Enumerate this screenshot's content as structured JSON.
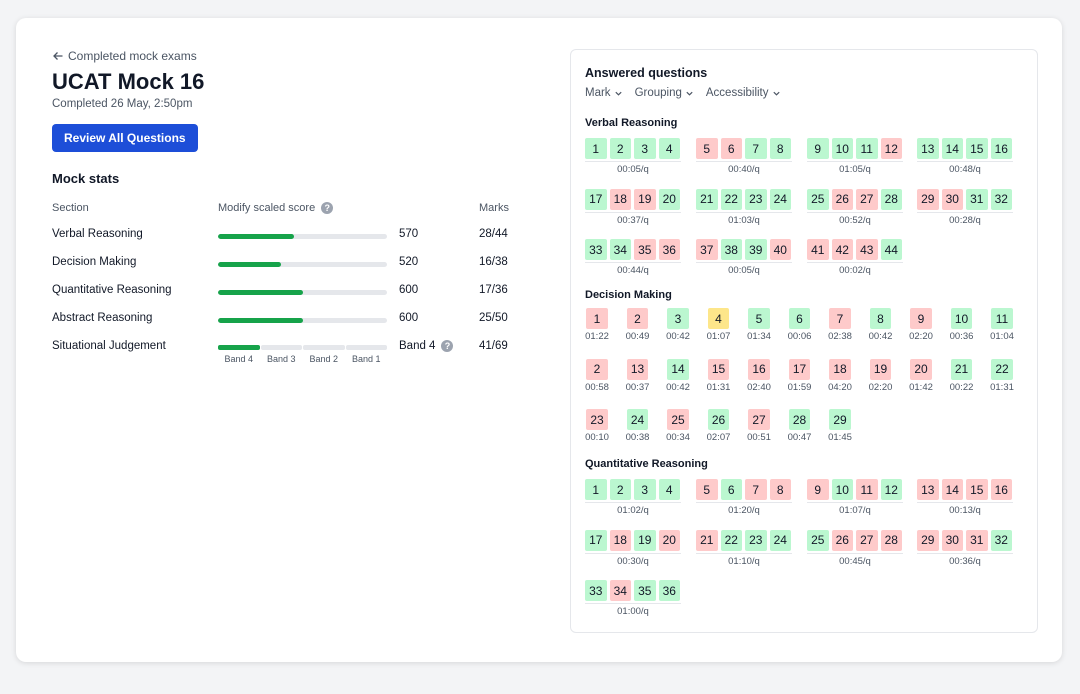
{
  "header": {
    "back_label": "Completed mock exams",
    "title": "UCAT Mock 16",
    "completed": "Completed 26 May, 2:50pm",
    "review_button": "Review All Questions"
  },
  "stats": {
    "title": "Mock stats",
    "col_section": "Section",
    "col_score": "Modify scaled score",
    "col_marks": "Marks",
    "rows": [
      {
        "name": "Verbal Reasoning",
        "score": "570",
        "marks": "28/44",
        "fill": 0.45
      },
      {
        "name": "Decision Making",
        "score": "520",
        "marks": "16/38",
        "fill": 0.37
      },
      {
        "name": "Quantitative Reasoning",
        "score": "600",
        "marks": "17/36",
        "fill": 0.5
      },
      {
        "name": "Abstract Reasoning",
        "score": "600",
        "marks": "25/50",
        "fill": 0.5
      }
    ],
    "sj": {
      "name": "Situational Judgement",
      "band": "Band 4",
      "marks": "41/69",
      "bands": [
        "Band 4",
        "Band 3",
        "Band 2",
        "Band 1"
      ],
      "active_band_index": 0
    }
  },
  "answered": {
    "title": "Answered questions",
    "filters": [
      "Mark",
      "Grouping",
      "Accessibility"
    ],
    "verbal": {
      "label": "Verbal Reasoning",
      "groups": [
        {
          "tiles": [
            [
              "1",
              "g"
            ],
            [
              "2",
              "g"
            ],
            [
              "3",
              "g"
            ],
            [
              "4",
              "g"
            ]
          ],
          "time": "00:05/q"
        },
        {
          "tiles": [
            [
              "5",
              "r"
            ],
            [
              "6",
              "r"
            ],
            [
              "7",
              "g"
            ],
            [
              "8",
              "g"
            ]
          ],
          "time": "00:40/q"
        },
        {
          "tiles": [
            [
              "9",
              "g"
            ],
            [
              "10",
              "g"
            ],
            [
              "11",
              "g"
            ],
            [
              "12",
              "r"
            ]
          ],
          "time": "01:05/q"
        },
        {
          "tiles": [
            [
              "13",
              "g"
            ],
            [
              "14",
              "g"
            ],
            [
              "15",
              "g"
            ],
            [
              "16",
              "g"
            ]
          ],
          "time": "00:48/q"
        },
        {
          "tiles": [
            [
              "17",
              "g"
            ],
            [
              "18",
              "r"
            ],
            [
              "19",
              "r"
            ],
            [
              "20",
              "g"
            ]
          ],
          "time": "00:37/q"
        },
        {
          "tiles": [
            [
              "21",
              "g"
            ],
            [
              "22",
              "g"
            ],
            [
              "23",
              "g"
            ],
            [
              "24",
              "g"
            ]
          ],
          "time": "01:03/q"
        },
        {
          "tiles": [
            [
              "25",
              "g"
            ],
            [
              "26",
              "r"
            ],
            [
              "27",
              "r"
            ],
            [
              "28",
              "g"
            ]
          ],
          "time": "00:52/q"
        },
        {
          "tiles": [
            [
              "29",
              "r"
            ],
            [
              "30",
              "r"
            ],
            [
              "31",
              "g"
            ],
            [
              "32",
              "g"
            ]
          ],
          "time": "00:28/q"
        },
        {
          "tiles": [
            [
              "33",
              "g"
            ],
            [
              "34",
              "g"
            ],
            [
              "35",
              "r"
            ],
            [
              "36",
              "r"
            ]
          ],
          "time": "00:44/q"
        },
        {
          "tiles": [
            [
              "37",
              "r"
            ],
            [
              "38",
              "g"
            ],
            [
              "39",
              "g"
            ],
            [
              "40",
              "r"
            ]
          ],
          "time": "00:05/q"
        },
        {
          "tiles": [
            [
              "41",
              "r"
            ],
            [
              "42",
              "r"
            ],
            [
              "43",
              "r"
            ],
            [
              "44",
              "g"
            ]
          ],
          "time": "00:02/q"
        }
      ]
    },
    "decision": {
      "label": "Decision Making",
      "items": [
        [
          "1",
          "r",
          "01:22"
        ],
        [
          "2",
          "r",
          "00:49"
        ],
        [
          "3",
          "g",
          "00:42"
        ],
        [
          "4",
          "y",
          "01:07"
        ],
        [
          "5",
          "g",
          "01:34"
        ],
        [
          "6",
          "g",
          "00:06"
        ],
        [
          "7",
          "r",
          "02:38"
        ],
        [
          "8",
          "g",
          "00:42"
        ],
        [
          "9",
          "r",
          "02:20"
        ],
        [
          "10",
          "g",
          "00:36"
        ],
        [
          "11",
          "g",
          "01:04"
        ],
        [
          "2",
          "r",
          "00:58"
        ],
        [
          "13",
          "r",
          "00:37"
        ],
        [
          "14",
          "g",
          "00:42"
        ],
        [
          "15",
          "r",
          "01:31"
        ],
        [
          "16",
          "r",
          "02:40"
        ],
        [
          "17",
          "r",
          "01:59"
        ],
        [
          "18",
          "r",
          "04:20"
        ],
        [
          "19",
          "r",
          "02:20"
        ],
        [
          "20",
          "r",
          "01:42"
        ],
        [
          "21",
          "g",
          "00:22"
        ],
        [
          "22",
          "g",
          "01:31"
        ],
        [
          "23",
          "r",
          "00:10"
        ],
        [
          "24",
          "g",
          "00:38"
        ],
        [
          "25",
          "r",
          "00:34"
        ],
        [
          "26",
          "g",
          "02:07"
        ],
        [
          "27",
          "r",
          "00:51"
        ],
        [
          "28",
          "g",
          "00:47"
        ],
        [
          "29",
          "g",
          "01:45"
        ]
      ]
    },
    "quant": {
      "label": "Quantitative Reasoning",
      "groups": [
        {
          "tiles": [
            [
              "1",
              "g"
            ],
            [
              "2",
              "g"
            ],
            [
              "3",
              "g"
            ],
            [
              "4",
              "g"
            ]
          ],
          "time": "01:02/q"
        },
        {
          "tiles": [
            [
              "5",
              "r"
            ],
            [
              "6",
              "g"
            ],
            [
              "7",
              "r"
            ],
            [
              "8",
              "r"
            ]
          ],
          "time": "01:20/q"
        },
        {
          "tiles": [
            [
              "9",
              "r"
            ],
            [
              "10",
              "g"
            ],
            [
              "11",
              "r"
            ],
            [
              "12",
              "g"
            ]
          ],
          "time": "01:07/q"
        },
        {
          "tiles": [
            [
              "13",
              "r"
            ],
            [
              "14",
              "r"
            ],
            [
              "15",
              "r"
            ],
            [
              "16",
              "r"
            ]
          ],
          "time": "00:13/q"
        },
        {
          "tiles": [
            [
              "17",
              "g"
            ],
            [
              "18",
              "r"
            ],
            [
              "19",
              "g"
            ],
            [
              "20",
              "r"
            ]
          ],
          "time": "00:30/q"
        },
        {
          "tiles": [
            [
              "21",
              "r"
            ],
            [
              "22",
              "g"
            ],
            [
              "23",
              "g"
            ],
            [
              "24",
              "g"
            ]
          ],
          "time": "01:10/q"
        },
        {
          "tiles": [
            [
              "25",
              "g"
            ],
            [
              "26",
              "r"
            ],
            [
              "27",
              "r"
            ],
            [
              "28",
              "r"
            ]
          ],
          "time": "00:45/q"
        },
        {
          "tiles": [
            [
              "29",
              "r"
            ],
            [
              "30",
              "r"
            ],
            [
              "31",
              "r"
            ],
            [
              "32",
              "g"
            ]
          ],
          "time": "00:36/q"
        },
        {
          "tiles": [
            [
              "33",
              "g"
            ],
            [
              "34",
              "r"
            ],
            [
              "35",
              "g"
            ],
            [
              "36",
              "g"
            ]
          ],
          "time": "01:00/q"
        }
      ]
    }
  }
}
